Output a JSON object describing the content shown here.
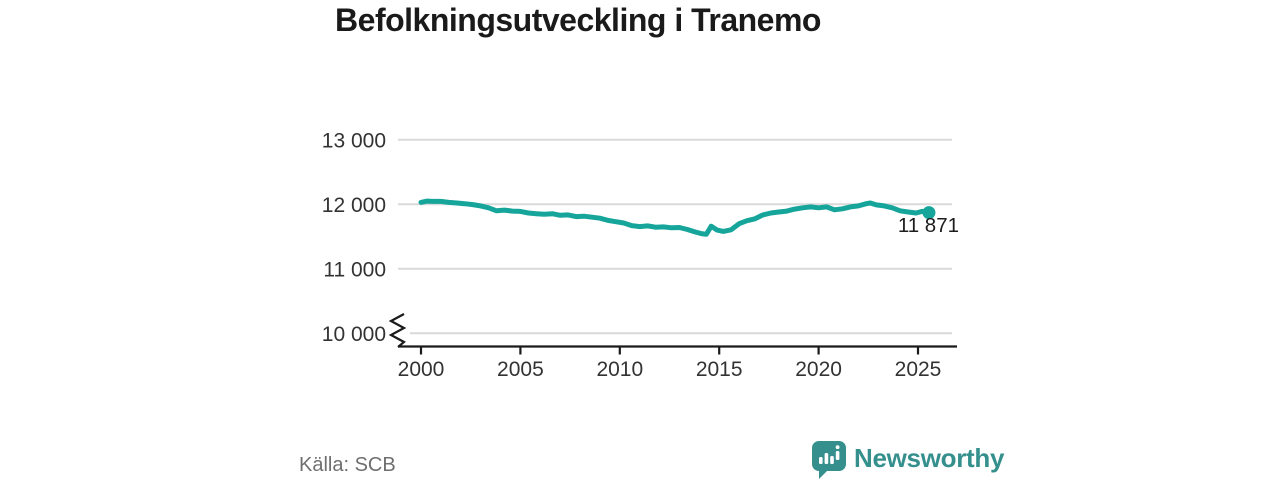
{
  "title": "Befolkningsutveckling i Tranemo",
  "source": "Källa: SCB",
  "logo": {
    "text": "Newsworthy",
    "icon": "newsworthy-speech-bubble-bar-chart-icon"
  },
  "colors": {
    "line": "#16a59b",
    "dot": "#16a59b",
    "logo": "#35908d",
    "grid": "#d9d9d9",
    "axis": "#1a1a1a",
    "tick_label": "#333333",
    "title": "#1a1a1a",
    "source": "#6f6f6f",
    "annotation": "#1d1d1d"
  },
  "chart_data": {
    "type": "line",
    "title": "Befolkningsutveckling i Tranemo",
    "xlabel": "",
    "ylabel": "",
    "legend": "none",
    "grid": "horizontal",
    "x_axis": {
      "ticks": [
        {
          "label": "2000",
          "value": 2000
        },
        {
          "label": "2005",
          "value": 2005
        },
        {
          "label": "2010",
          "value": 2010
        },
        {
          "label": "2015",
          "value": 2015
        },
        {
          "label": "2020",
          "value": 2020
        },
        {
          "label": "2025",
          "value": 2025
        }
      ],
      "range": [
        1998.8,
        2027
      ]
    },
    "y_axis": {
      "ticks": [
        {
          "label": "13 000",
          "value": 13000
        },
        {
          "label": "12 000",
          "value": 12000
        },
        {
          "label": "11 000",
          "value": 11000
        },
        {
          "label": "10 000",
          "value": 10000
        }
      ],
      "broken_axis_at": 10000
    },
    "annotation": {
      "label": "11 871",
      "x": 2025.55,
      "y": 11871
    },
    "series": [
      {
        "name": "Befolkning",
        "color": "#16a59b",
        "points": [
          [
            2000.0,
            12030
          ],
          [
            2000.3,
            12050
          ],
          [
            2000.6,
            12045
          ],
          [
            2001.0,
            12045
          ],
          [
            2001.4,
            12030
          ],
          [
            2001.8,
            12020
          ],
          [
            2002.2,
            12010
          ],
          [
            2002.6,
            11995
          ],
          [
            2003.0,
            11975
          ],
          [
            2003.4,
            11945
          ],
          [
            2003.8,
            11900
          ],
          [
            2004.2,
            11910
          ],
          [
            2004.6,
            11895
          ],
          [
            2005.0,
            11890
          ],
          [
            2005.4,
            11865
          ],
          [
            2005.8,
            11855
          ],
          [
            2006.2,
            11845
          ],
          [
            2006.6,
            11855
          ],
          [
            2007.0,
            11830
          ],
          [
            2007.4,
            11835
          ],
          [
            2007.8,
            11810
          ],
          [
            2008.2,
            11815
          ],
          [
            2008.6,
            11800
          ],
          [
            2009.0,
            11785
          ],
          [
            2009.4,
            11750
          ],
          [
            2009.8,
            11730
          ],
          [
            2010.2,
            11710
          ],
          [
            2010.6,
            11670
          ],
          [
            2011.0,
            11655
          ],
          [
            2011.4,
            11665
          ],
          [
            2011.8,
            11645
          ],
          [
            2012.2,
            11650
          ],
          [
            2012.6,
            11635
          ],
          [
            2013.0,
            11640
          ],
          [
            2013.4,
            11610
          ],
          [
            2013.8,
            11570
          ],
          [
            2014.1,
            11545
          ],
          [
            2014.35,
            11535
          ],
          [
            2014.6,
            11660
          ],
          [
            2014.9,
            11600
          ],
          [
            2015.2,
            11580
          ],
          [
            2015.6,
            11605
          ],
          [
            2016.0,
            11700
          ],
          [
            2016.4,
            11745
          ],
          [
            2016.8,
            11775
          ],
          [
            2017.2,
            11835
          ],
          [
            2017.6,
            11865
          ],
          [
            2018.0,
            11880
          ],
          [
            2018.4,
            11895
          ],
          [
            2018.8,
            11925
          ],
          [
            2019.2,
            11945
          ],
          [
            2019.6,
            11960
          ],
          [
            2020.0,
            11945
          ],
          [
            2020.4,
            11960
          ],
          [
            2020.8,
            11915
          ],
          [
            2021.2,
            11930
          ],
          [
            2021.6,
            11960
          ],
          [
            2022.0,
            11975
          ],
          [
            2022.4,
            12010
          ],
          [
            2022.6,
            12020
          ],
          [
            2022.9,
            11990
          ],
          [
            2023.3,
            11975
          ],
          [
            2023.7,
            11945
          ],
          [
            2024.1,
            11900
          ],
          [
            2024.5,
            11880
          ],
          [
            2024.9,
            11865
          ],
          [
            2025.2,
            11890
          ],
          [
            2025.55,
            11871
          ]
        ]
      }
    ]
  }
}
